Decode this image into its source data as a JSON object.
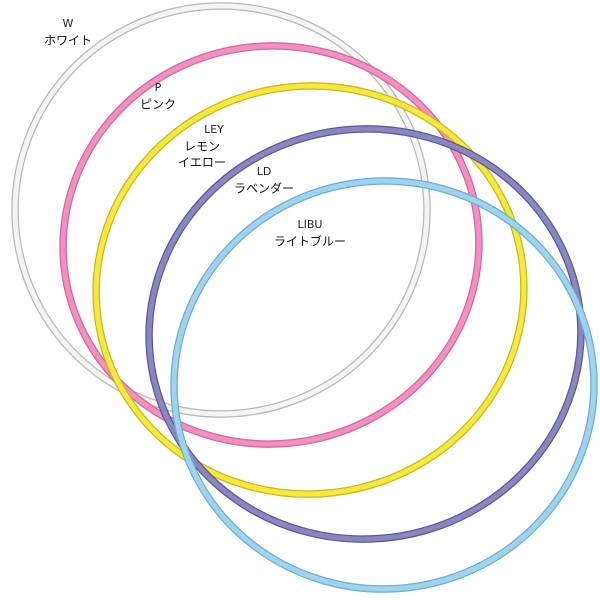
{
  "items": [
    {
      "code": "W",
      "name": [
        "ホワイト"
      ],
      "color": "#f4f4f4",
      "edge": "#b8b8b8"
    },
    {
      "code": "P",
      "name": [
        "ピンク"
      ],
      "color": "#f290c0",
      "edge": "#d2689c"
    },
    {
      "code": "LEY",
      "name": [
        "レモン",
        "イエロー"
      ],
      "color": "#f5ea3c",
      "edge": "#c8b820"
    },
    {
      "code": "LD",
      "name": [
        "ラベンダー"
      ],
      "color": "#8a86c0",
      "edge": "#5c5894"
    },
    {
      "code": "LIBU",
      "name": [
        "ライトブルー"
      ],
      "color": "#9ed4ee",
      "edge": "#6eaed0"
    }
  ]
}
